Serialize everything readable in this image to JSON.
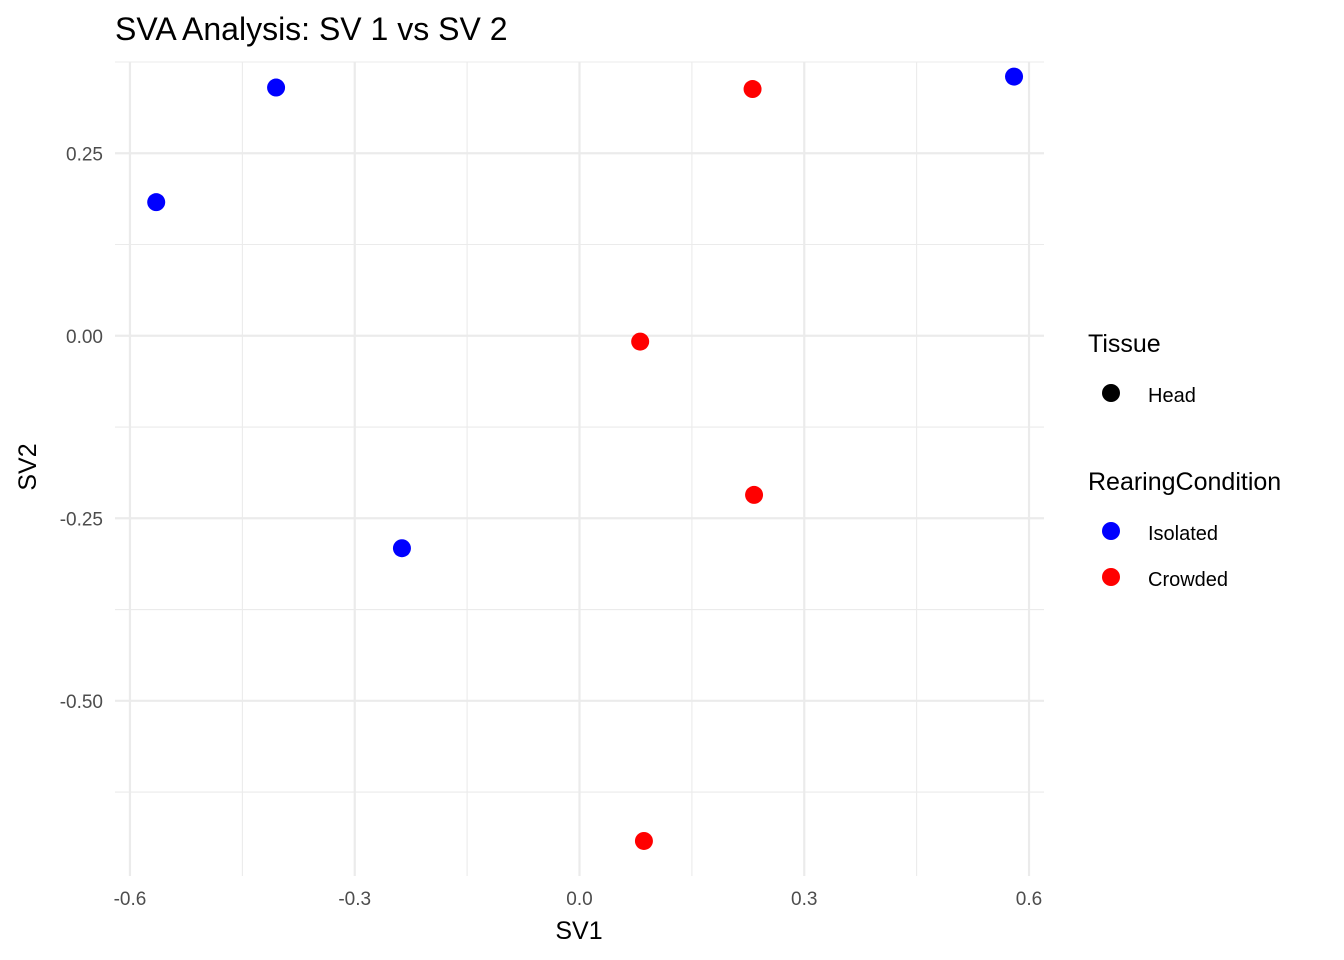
{
  "chart_data": {
    "type": "scatter",
    "title": "SVA Analysis: SV 1  vs SV 2",
    "xlabel": "SV1",
    "ylabel": "SV2",
    "xlim": [
      -0.62,
      0.62
    ],
    "ylim": [
      -0.74,
      0.375
    ],
    "x_ticks": [
      -0.6,
      -0.3,
      0.0,
      0.3,
      0.6
    ],
    "x_tick_labels": [
      "-0.6",
      "-0.3",
      "0.0",
      "0.3",
      "0.6"
    ],
    "x_minor_ticks": [
      -0.45,
      -0.15,
      0.15,
      0.45
    ],
    "y_ticks": [
      -0.5,
      -0.25,
      0.0,
      0.25
    ],
    "y_tick_labels": [
      "-0.50",
      "-0.25",
      "0.00",
      "0.25"
    ],
    "y_minor_ticks": [
      -0.625,
      -0.375,
      -0.125,
      0.125,
      0.375
    ],
    "grid": true,
    "legend_position": "right",
    "series": [
      {
        "name": "Isolated",
        "color": "#0000ff",
        "points": [
          {
            "x": -0.565,
            "y": 0.183
          },
          {
            "x": -0.405,
            "y": 0.34
          },
          {
            "x": -0.237,
            "y": -0.291
          },
          {
            "x": 0.58,
            "y": 0.355
          }
        ]
      },
      {
        "name": "Crowded",
        "color": "#ff0000",
        "points": [
          {
            "x": 0.081,
            "y": -0.008
          },
          {
            "x": 0.231,
            "y": 0.338
          },
          {
            "x": 0.233,
            "y": -0.218
          },
          {
            "x": 0.086,
            "y": -0.692
          }
        ]
      }
    ],
    "legends": [
      {
        "title": "Tissue",
        "entries": [
          {
            "label": "Head",
            "color": "#000000"
          }
        ]
      },
      {
        "title": "RearingCondition",
        "entries": [
          {
            "label": "Isolated",
            "color": "#0000ff"
          },
          {
            "label": "Crowded",
            "color": "#ff0000"
          }
        ]
      }
    ]
  }
}
